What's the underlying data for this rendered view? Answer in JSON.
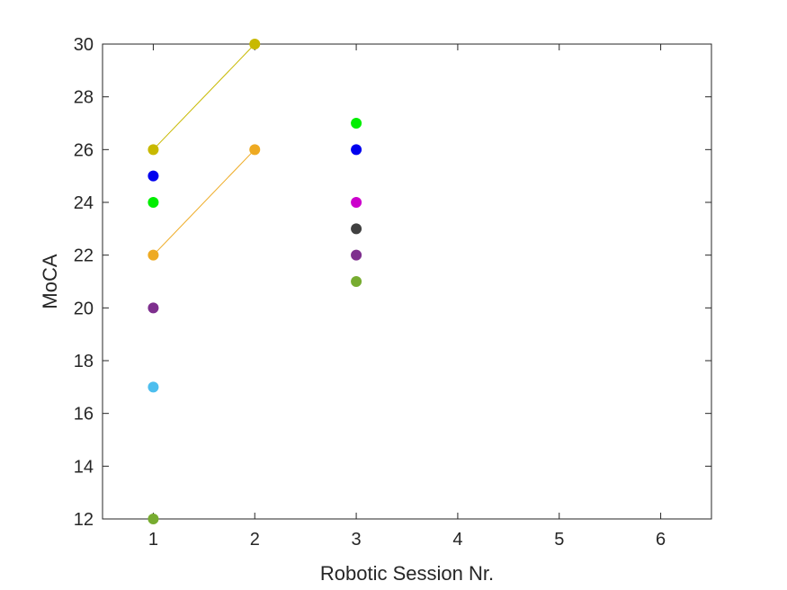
{
  "chart_data": {
    "type": "scatter",
    "title": "",
    "xlabel": "Robotic Session Nr.",
    "ylabel": "MoCA",
    "xlim": [
      0.5,
      6.5
    ],
    "ylim": [
      12,
      30
    ],
    "xticks": [
      1,
      2,
      3,
      4,
      5,
      6
    ],
    "yticks": [
      12,
      14,
      16,
      18,
      20,
      22,
      24,
      26,
      28,
      30
    ],
    "grid": false,
    "legend": "none",
    "series": [
      {
        "color": "#c8b900",
        "connected": true,
        "points": [
          {
            "x": 1,
            "y": 26
          },
          {
            "x": 2,
            "y": 30
          }
        ]
      },
      {
        "color": "#eeaa22",
        "connected": true,
        "points": [
          {
            "x": 1,
            "y": 22
          },
          {
            "x": 2,
            "y": 26
          }
        ]
      },
      {
        "color": "#0000ee",
        "connected": false,
        "points": [
          {
            "x": 1,
            "y": 25
          },
          {
            "x": 3,
            "y": 26
          }
        ]
      },
      {
        "color": "#00ee00",
        "connected": false,
        "points": [
          {
            "x": 1,
            "y": 24
          },
          {
            "x": 3,
            "y": 27
          }
        ]
      },
      {
        "color": "#7e2f8e",
        "connected": false,
        "points": [
          {
            "x": 1,
            "y": 20
          },
          {
            "x": 3,
            "y": 22
          }
        ]
      },
      {
        "color": "#4dbeee",
        "connected": false,
        "points": [
          {
            "x": 1,
            "y": 17
          }
        ]
      },
      {
        "color": "#77ac30",
        "connected": false,
        "points": [
          {
            "x": 1,
            "y": 12
          },
          {
            "x": 3,
            "y": 21
          }
        ]
      },
      {
        "color": "#cc00cc",
        "connected": false,
        "points": [
          {
            "x": 3,
            "y": 24
          }
        ]
      },
      {
        "color": "#404040",
        "connected": false,
        "points": [
          {
            "x": 3,
            "y": 23
          }
        ]
      }
    ]
  }
}
